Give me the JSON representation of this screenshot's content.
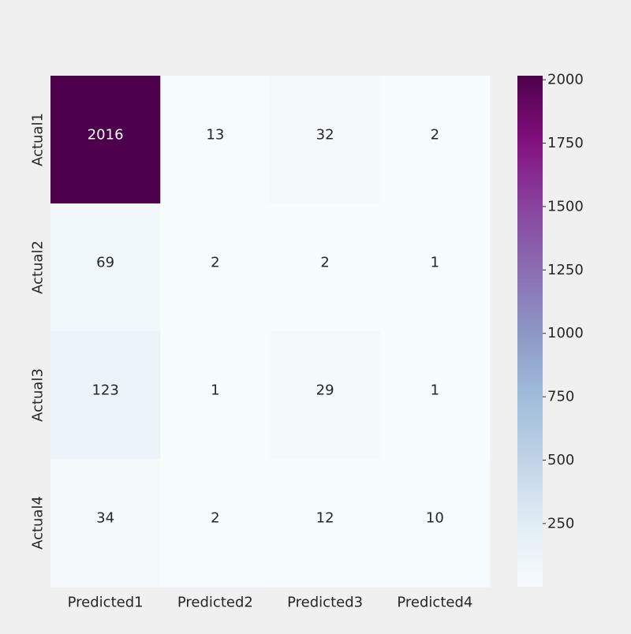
{
  "chart_data": {
    "type": "heatmap",
    "title": "",
    "xlabel": "",
    "ylabel": "",
    "columns": [
      "Predicted1",
      "Predicted2",
      "Predicted3",
      "Predicted4"
    ],
    "rows": [
      "Actual1",
      "Actual2",
      "Actual3",
      "Actual4"
    ],
    "values": [
      [
        2016,
        13,
        32,
        2
      ],
      [
        69,
        2,
        2,
        1
      ],
      [
        123,
        1,
        29,
        1
      ],
      [
        34,
        2,
        12,
        10
      ]
    ],
    "colormap": "BuPu",
    "color_range": [
      1,
      2016
    ],
    "colorbar_ticks": [
      250,
      500,
      750,
      1000,
      1250,
      1500,
      1750,
      2000
    ],
    "colors": {
      "background": "#f0f0f0",
      "text_dark": "#262626",
      "text_light": "#ffffff"
    },
    "annotations": true,
    "grid": false
  }
}
